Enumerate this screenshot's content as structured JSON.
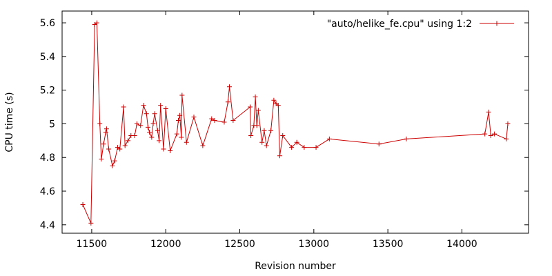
{
  "chart_data": {
    "type": "line",
    "xlabel": "Revision number",
    "ylabel": "CPU time (s)",
    "xlim": [
      11300,
      14450
    ],
    "ylim": [
      4.35,
      5.67
    ],
    "xticks": [
      11500,
      12000,
      12500,
      13000,
      13500,
      14000
    ],
    "yticks": [
      4.4,
      4.6,
      4.8,
      5,
      5.2,
      5.4,
      5.6
    ],
    "xtick_labels": [
      "11500",
      "12000",
      "12500",
      "13000",
      "13500",
      "14000"
    ],
    "ytick_labels": [
      "4.4",
      "4.6",
      "4.8",
      "5",
      "5.2",
      "5.4",
      "5.6"
    ],
    "grid": false,
    "legend_position": "top-right",
    "colors": {
      "series": "#cc0000",
      "axes": "#000000",
      "background": "#ffffff"
    },
    "series": [
      {
        "name": "\"auto/helike_fe.cpu\" using 1:2",
        "marker": "plus",
        "x": [
          11440,
          11495,
          11520,
          11535,
          11555,
          11565,
          11580,
          11595,
          11600,
          11615,
          11640,
          11655,
          11675,
          11690,
          11715,
          11725,
          11745,
          11765,
          11790,
          11805,
          11830,
          11850,
          11870,
          11880,
          11890,
          11905,
          11915,
          11925,
          11945,
          11955,
          11965,
          11985,
          12000,
          12030,
          12075,
          12085,
          12095,
          12105,
          12110,
          12140,
          12190,
          12250,
          12310,
          12330,
          12395,
          12420,
          12430,
          12455,
          12570,
          12575,
          12595,
          12605,
          12615,
          12625,
          12650,
          12665,
          12680,
          12710,
          12730,
          12745,
          12760,
          12770,
          12790,
          12850,
          12885,
          12935,
          13015,
          13105,
          13440,
          13625,
          14155,
          14180,
          14195,
          14220,
          14300,
          14310
        ],
        "y": [
          4.52,
          4.41,
          5.59,
          5.6,
          5.0,
          4.79,
          4.88,
          4.95,
          4.97,
          4.85,
          4.75,
          4.78,
          4.86,
          4.85,
          5.1,
          4.87,
          4.9,
          4.93,
          4.93,
          5.0,
          4.99,
          5.11,
          5.06,
          4.98,
          4.95,
          4.92,
          5.0,
          5.06,
          4.96,
          4.9,
          5.11,
          4.85,
          5.09,
          4.84,
          4.94,
          5.02,
          5.05,
          4.92,
          5.17,
          4.89,
          5.04,
          4.87,
          5.03,
          5.02,
          5.01,
          5.13,
          5.22,
          5.02,
          5.1,
          4.93,
          4.99,
          5.16,
          4.99,
          5.08,
          4.89,
          4.96,
          4.87,
          4.96,
          5.14,
          5.12,
          5.11,
          4.81,
          4.93,
          4.86,
          4.89,
          4.86,
          4.86,
          4.91,
          4.88,
          4.91,
          4.94,
          5.07,
          4.93,
          4.94,
          4.91,
          5.0
        ]
      }
    ]
  }
}
